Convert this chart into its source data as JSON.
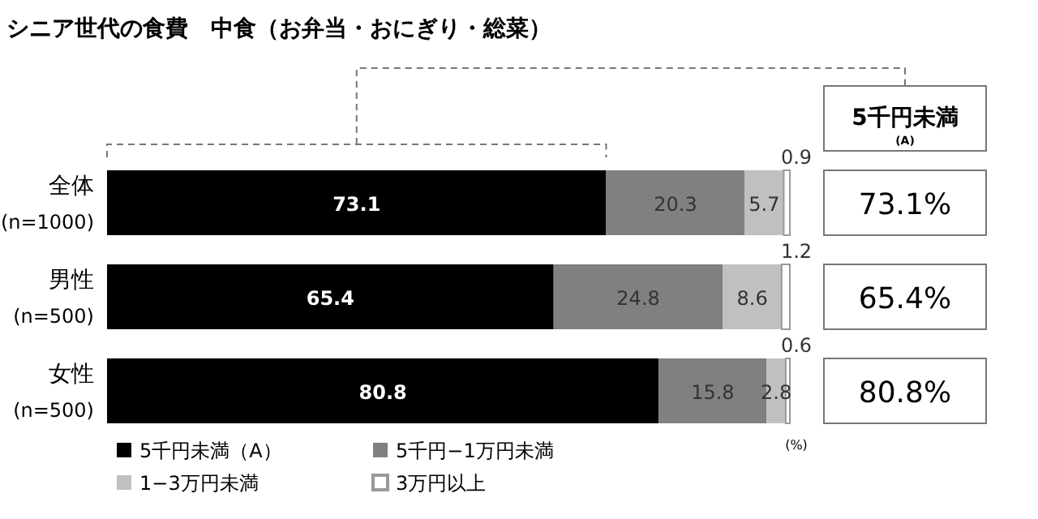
{
  "chart_data": {
    "type": "bar",
    "orientation": "horizontal",
    "stacked": true,
    "data_labels": true,
    "title": "シニア世代の食費　中食（お弁当・おにぎり・総菜）",
    "categories": [
      "全体\n(n=1000)",
      "男性\n(n=500)",
      "女性\n(n=500)"
    ],
    "series": [
      {
        "name": "5千円未満（A）",
        "color": "#000000",
        "values": [
          73.1,
          65.4,
          80.8
        ]
      },
      {
        "name": "5千円−1万円未満",
        "color": "#808080",
        "values": [
          20.3,
          24.8,
          15.8
        ]
      },
      {
        "name": "1−3万円未満",
        "color": "#c0c0c0",
        "values": [
          5.7,
          8.6,
          2.8
        ]
      },
      {
        "name": "3万円以上",
        "color": "#ffffff",
        "values": [
          0.9,
          1.2,
          0.6
        ]
      }
    ],
    "legend": "bottom",
    "annotations": [
      "(%)",
      "5千円未満",
      "(A)",
      "73.1%",
      "65.4%",
      "80.8%"
    ]
  }
}
